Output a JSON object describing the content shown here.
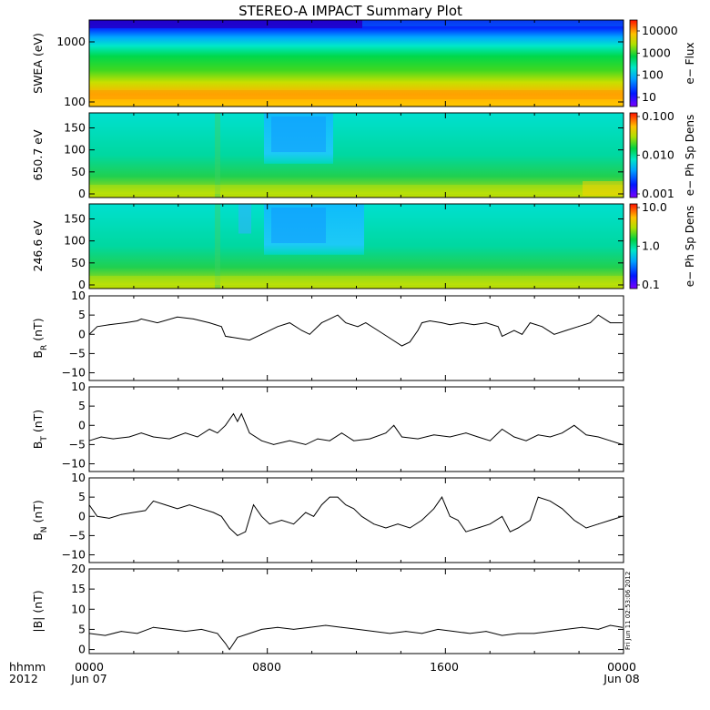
{
  "chart_data": {
    "type": "line",
    "title": "STEREO-A IMPACT Summary Plot",
    "xaxis": {
      "corner_label_1": "hhmm",
      "corner_label_2": "2012",
      "ticks": [
        "0000",
        "0800",
        "1600",
        "0000"
      ],
      "date_labels": [
        "Jun 07",
        "Jun 08"
      ],
      "range": [
        "2012-06-07T00:00",
        "2012-06-08T00:00"
      ]
    },
    "spectrograms": [
      {
        "ylabel": "SWEA (eV)",
        "yscale": "log",
        "ytick_labels": [
          "1000",
          "100"
        ],
        "colorbar_label": "e− Flux",
        "colorbar_scale": "log",
        "colorbar_ticks": [
          "10000",
          "1000",
          "100",
          "10"
        ]
      },
      {
        "ylabel": "650.7 eV",
        "yscale": "linear",
        "ylim": [
          0,
          180
        ],
        "ytick_labels": [
          "150",
          "100",
          "50",
          "0"
        ],
        "colorbar_label": "e− Ph Sp Dens",
        "colorbar_scale": "log",
        "colorbar_ticks": [
          "0.100",
          "0.010",
          "0.001"
        ]
      },
      {
        "ylabel": "246.6 eV",
        "yscale": "linear",
        "ylim": [
          0,
          180
        ],
        "ytick_labels": [
          "150",
          "100",
          "50",
          "0"
        ],
        "colorbar_label": "e− Ph Sp Dens",
        "colorbar_scale": "log",
        "colorbar_ticks": [
          "10.0",
          "1.0",
          "0.1"
        ]
      }
    ],
    "line_panels": [
      {
        "ylabel": "B",
        "ylabel_sub": "R",
        "ylabel_unit": " (nT)",
        "ylim": [
          -12,
          10
        ],
        "ytick_labels": [
          "10",
          "5",
          "0",
          "−5",
          "−10"
        ],
        "series": [
          {
            "t": 0.0,
            "v": 0
          },
          {
            "t": 0.02,
            "v": 2
          },
          {
            "t": 0.05,
            "v": 2.5
          },
          {
            "t": 0.09,
            "v": 3
          },
          {
            "t": 0.12,
            "v": 3.5
          },
          {
            "t": 0.13,
            "v": 4
          },
          {
            "t": 0.17,
            "v": 3
          },
          {
            "t": 0.22,
            "v": 4.5
          },
          {
            "t": 0.26,
            "v": 4
          },
          {
            "t": 0.3,
            "v": 3
          },
          {
            "t": 0.33,
            "v": 2
          },
          {
            "t": 0.34,
            "v": -0.5
          },
          {
            "t": 0.37,
            "v": -1
          },
          {
            "t": 0.4,
            "v": -1.5
          },
          {
            "t": 0.43,
            "v": 0
          },
          {
            "t": 0.47,
            "v": 2
          },
          {
            "t": 0.5,
            "v": 3
          },
          {
            "t": 0.53,
            "v": 1
          },
          {
            "t": 0.55,
            "v": 0
          },
          {
            "t": 0.58,
            "v": 3
          },
          {
            "t": 0.6,
            "v": 4
          },
          {
            "t": 0.62,
            "v": 5
          },
          {
            "t": 0.64,
            "v": 3
          },
          {
            "t": 0.67,
            "v": 2
          },
          {
            "t": 0.69,
            "v": 3
          },
          {
            "t": 0.72,
            "v": 1
          },
          {
            "t": 0.75,
            "v": -1
          },
          {
            "t": 0.78,
            "v": -3
          },
          {
            "t": 0.8,
            "v": -2
          },
          {
            "t": 0.82,
            "v": 1
          },
          {
            "t": 0.83,
            "v": 3
          },
          {
            "t": 0.85,
            "v": 3.5
          },
          {
            "t": 0.88,
            "v": 3
          },
          {
            "t": 0.9,
            "v": 2.5
          },
          {
            "t": 0.93,
            "v": 3
          },
          {
            "t": 0.96,
            "v": 2.5
          },
          {
            "t": 0.99,
            "v": 3
          },
          {
            "t": 1.02,
            "v": 2
          },
          {
            "t": 1.03,
            "v": -0.5
          },
          {
            "t": 1.06,
            "v": 1
          },
          {
            "t": 1.08,
            "v": 0
          },
          {
            "t": 1.1,
            "v": 3
          },
          {
            "t": 1.13,
            "v": 2
          },
          {
            "t": 1.16,
            "v": 0
          },
          {
            "t": 1.19,
            "v": 1
          },
          {
            "t": 1.22,
            "v": 2
          },
          {
            "t": 1.25,
            "v": 3
          },
          {
            "t": 1.27,
            "v": 5
          },
          {
            "t": 1.3,
            "v": 3
          },
          {
            "t": 1.33,
            "v": 3
          }
        ]
      },
      {
        "ylabel": "B",
        "ylabel_sub": "T",
        "ylabel_unit": " (nT)",
        "ylim": [
          -12,
          10
        ],
        "ytick_labels": [
          "10",
          "5",
          "0",
          "−5",
          "−10"
        ],
        "series": [
          {
            "t": 0.0,
            "v": -4
          },
          {
            "t": 0.03,
            "v": -3
          },
          {
            "t": 0.06,
            "v": -3.5
          },
          {
            "t": 0.1,
            "v": -3
          },
          {
            "t": 0.13,
            "v": -2
          },
          {
            "t": 0.16,
            "v": -3
          },
          {
            "t": 0.2,
            "v": -3.5
          },
          {
            "t": 0.24,
            "v": -2
          },
          {
            "t": 0.27,
            "v": -3
          },
          {
            "t": 0.3,
            "v": -1
          },
          {
            "t": 0.32,
            "v": -2
          },
          {
            "t": 0.34,
            "v": 0
          },
          {
            "t": 0.36,
            "v": 3
          },
          {
            "t": 0.37,
            "v": 1
          },
          {
            "t": 0.38,
            "v": 3
          },
          {
            "t": 0.4,
            "v": -2
          },
          {
            "t": 0.43,
            "v": -4
          },
          {
            "t": 0.46,
            "v": -5
          },
          {
            "t": 0.5,
            "v": -4
          },
          {
            "t": 0.54,
            "v": -5
          },
          {
            "t": 0.57,
            "v": -3.5
          },
          {
            "t": 0.6,
            "v": -4
          },
          {
            "t": 0.63,
            "v": -2
          },
          {
            "t": 0.66,
            "v": -4
          },
          {
            "t": 0.7,
            "v": -3.5
          },
          {
            "t": 0.74,
            "v": -2
          },
          {
            "t": 0.76,
            "v": 0
          },
          {
            "t": 0.78,
            "v": -3
          },
          {
            "t": 0.82,
            "v": -3.5
          },
          {
            "t": 0.86,
            "v": -2.5
          },
          {
            "t": 0.9,
            "v": -3
          },
          {
            "t": 0.94,
            "v": -2
          },
          {
            "t": 0.97,
            "v": -3
          },
          {
            "t": 1.0,
            "v": -4
          },
          {
            "t": 1.03,
            "v": -1
          },
          {
            "t": 1.06,
            "v": -3
          },
          {
            "t": 1.09,
            "v": -4
          },
          {
            "t": 1.12,
            "v": -2.5
          },
          {
            "t": 1.15,
            "v": -3
          },
          {
            "t": 1.18,
            "v": -2
          },
          {
            "t": 1.21,
            "v": 0
          },
          {
            "t": 1.24,
            "v": -2.5
          },
          {
            "t": 1.27,
            "v": -3
          },
          {
            "t": 1.3,
            "v": -4
          },
          {
            "t": 1.33,
            "v": -5
          }
        ]
      },
      {
        "ylabel": "B",
        "ylabel_sub": "N",
        "ylabel_unit": " (nT)",
        "ylim": [
          -12,
          10
        ],
        "ytick_labels": [
          "10",
          "5",
          "0",
          "−5",
          "−10"
        ],
        "series": [
          {
            "t": 0.0,
            "v": 3
          },
          {
            "t": 0.02,
            "v": 0
          },
          {
            "t": 0.05,
            "v": -0.5
          },
          {
            "t": 0.08,
            "v": 0.5
          },
          {
            "t": 0.11,
            "v": 1
          },
          {
            "t": 0.14,
            "v": 1.5
          },
          {
            "t": 0.16,
            "v": 4
          },
          {
            "t": 0.19,
            "v": 3
          },
          {
            "t": 0.22,
            "v": 2
          },
          {
            "t": 0.25,
            "v": 3
          },
          {
            "t": 0.28,
            "v": 2
          },
          {
            "t": 0.31,
            "v": 1
          },
          {
            "t": 0.33,
            "v": 0
          },
          {
            "t": 0.35,
            "v": -3
          },
          {
            "t": 0.37,
            "v": -5
          },
          {
            "t": 0.39,
            "v": -4
          },
          {
            "t": 0.41,
            "v": 3
          },
          {
            "t": 0.43,
            "v": 0
          },
          {
            "t": 0.45,
            "v": -2
          },
          {
            "t": 0.48,
            "v": -1
          },
          {
            "t": 0.51,
            "v": -2
          },
          {
            "t": 0.54,
            "v": 1
          },
          {
            "t": 0.56,
            "v": 0
          },
          {
            "t": 0.58,
            "v": 3
          },
          {
            "t": 0.6,
            "v": 5
          },
          {
            "t": 0.62,
            "v": 5
          },
          {
            "t": 0.64,
            "v": 3
          },
          {
            "t": 0.66,
            "v": 2
          },
          {
            "t": 0.68,
            "v": 0
          },
          {
            "t": 0.71,
            "v": -2
          },
          {
            "t": 0.74,
            "v": -3
          },
          {
            "t": 0.77,
            "v": -2
          },
          {
            "t": 0.8,
            "v": -3
          },
          {
            "t": 0.83,
            "v": -1
          },
          {
            "t": 0.86,
            "v": 2
          },
          {
            "t": 0.88,
            "v": 5
          },
          {
            "t": 0.9,
            "v": 0
          },
          {
            "t": 0.92,
            "v": -1
          },
          {
            "t": 0.94,
            "v": -4
          },
          {
            "t": 0.97,
            "v": -3
          },
          {
            "t": 1.0,
            "v": -2
          },
          {
            "t": 1.03,
            "v": 0
          },
          {
            "t": 1.05,
            "v": -4
          },
          {
            "t": 1.07,
            "v": -3
          },
          {
            "t": 1.1,
            "v": -1
          },
          {
            "t": 1.12,
            "v": 5
          },
          {
            "t": 1.15,
            "v": 4
          },
          {
            "t": 1.18,
            "v": 2
          },
          {
            "t": 1.21,
            "v": -1
          },
          {
            "t": 1.24,
            "v": -3
          },
          {
            "t": 1.27,
            "v": -2
          },
          {
            "t": 1.3,
            "v": -1
          },
          {
            "t": 1.33,
            "v": 0
          }
        ]
      },
      {
        "ylabel": "|B|",
        "ylabel_sub": "",
        "ylabel_unit": " (nT)",
        "ylim": [
          -1,
          20
        ],
        "ytick_labels": [
          "20",
          "15",
          "10",
          "5",
          "0"
        ],
        "series": [
          {
            "t": 0.0,
            "v": 4
          },
          {
            "t": 0.04,
            "v": 3.5
          },
          {
            "t": 0.08,
            "v": 4.5
          },
          {
            "t": 0.12,
            "v": 4
          },
          {
            "t": 0.16,
            "v": 5.5
          },
          {
            "t": 0.2,
            "v": 5
          },
          {
            "t": 0.24,
            "v": 4.5
          },
          {
            "t": 0.28,
            "v": 5
          },
          {
            "t": 0.32,
            "v": 4
          },
          {
            "t": 0.34,
            "v": 1.5
          },
          {
            "t": 0.35,
            "v": 0
          },
          {
            "t": 0.37,
            "v": 3
          },
          {
            "t": 0.4,
            "v": 4
          },
          {
            "t": 0.43,
            "v": 5
          },
          {
            "t": 0.47,
            "v": 5.5
          },
          {
            "t": 0.51,
            "v": 5
          },
          {
            "t": 0.55,
            "v": 5.5
          },
          {
            "t": 0.59,
            "v": 6
          },
          {
            "t": 0.63,
            "v": 5.5
          },
          {
            "t": 0.67,
            "v": 5
          },
          {
            "t": 0.71,
            "v": 4.5
          },
          {
            "t": 0.75,
            "v": 4
          },
          {
            "t": 0.79,
            "v": 4.5
          },
          {
            "t": 0.83,
            "v": 4
          },
          {
            "t": 0.87,
            "v": 5
          },
          {
            "t": 0.91,
            "v": 4.5
          },
          {
            "t": 0.95,
            "v": 4
          },
          {
            "t": 0.99,
            "v": 4.5
          },
          {
            "t": 1.03,
            "v": 3.5
          },
          {
            "t": 1.07,
            "v": 4
          },
          {
            "t": 1.11,
            "v": 4
          },
          {
            "t": 1.15,
            "v": 4.5
          },
          {
            "t": 1.19,
            "v": 5
          },
          {
            "t": 1.23,
            "v": 5.5
          },
          {
            "t": 1.27,
            "v": 5
          },
          {
            "t": 1.3,
            "v": 6
          },
          {
            "t": 1.33,
            "v": 5.5
          }
        ]
      }
    ],
    "vertical_note": "Fri Jun 11 02:53:06 2012",
    "grid": false,
    "legend": "none"
  }
}
